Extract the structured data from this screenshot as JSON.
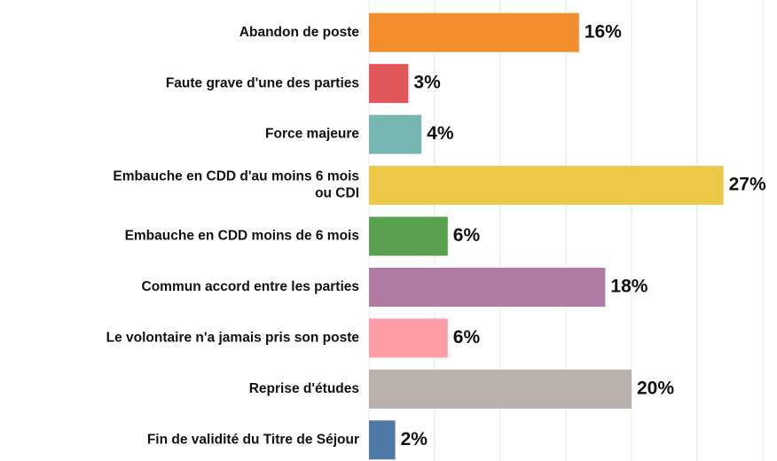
{
  "chart_data": {
    "type": "barh",
    "categories": [
      "Abandon de poste",
      "Faute grave d'une des parties",
      "Force majeure",
      "Embauche en CDD d'au moins 6 mois\nou CDI",
      "Embauche en CDD moins de 6 mois",
      "Commun accord entre les parties",
      "Le volontaire n'a jamais pris son poste",
      "Reprise d'études",
      "Fin de validité du Titre de Séjour"
    ],
    "values": [
      16,
      3,
      4,
      27,
      6,
      18,
      6,
      20,
      2
    ],
    "value_labels": [
      "16%",
      "3%",
      "4%",
      "27%",
      "6%",
      "18%",
      "6%",
      "20%",
      "2%"
    ],
    "colors": [
      "#f28e2b",
      "#e15759",
      "#76b7b2",
      "#edc948",
      "#59a14f",
      "#b07aa1",
      "#ff9da7",
      "#bab0ac",
      "#4e79a7"
    ],
    "xlim": [
      0,
      30
    ],
    "xticks": [
      0,
      5,
      10,
      15,
      20,
      25,
      30
    ],
    "grid": true
  }
}
